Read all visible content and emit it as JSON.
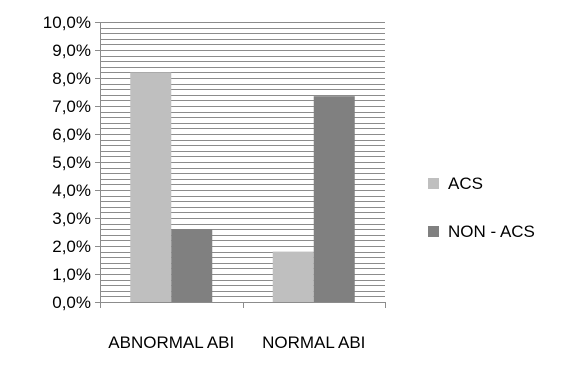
{
  "chart_data": {
    "type": "bar",
    "categories": [
      "ABNORMAL ABI",
      "NORMAL ABI"
    ],
    "series": [
      {
        "name": "ACS",
        "values": [
          8.2,
          1.8
        ],
        "color": "#bfbfbf"
      },
      {
        "name": "NON - ACS",
        "values": [
          2.6,
          7.35
        ],
        "color": "#808080"
      }
    ],
    "ylim": [
      0,
      10
    ],
    "yticks": [
      "0,0%",
      "1,0%",
      "2,0%",
      "3,0%",
      "4,0%",
      "5,0%",
      "6,0%",
      "7,0%",
      "8,0%",
      "9,0%",
      "10,0%"
    ],
    "grid": true,
    "minor_grid_step": 0.2,
    "legend_position": "right",
    "title": "",
    "xlabel": "",
    "ylabel": ""
  }
}
